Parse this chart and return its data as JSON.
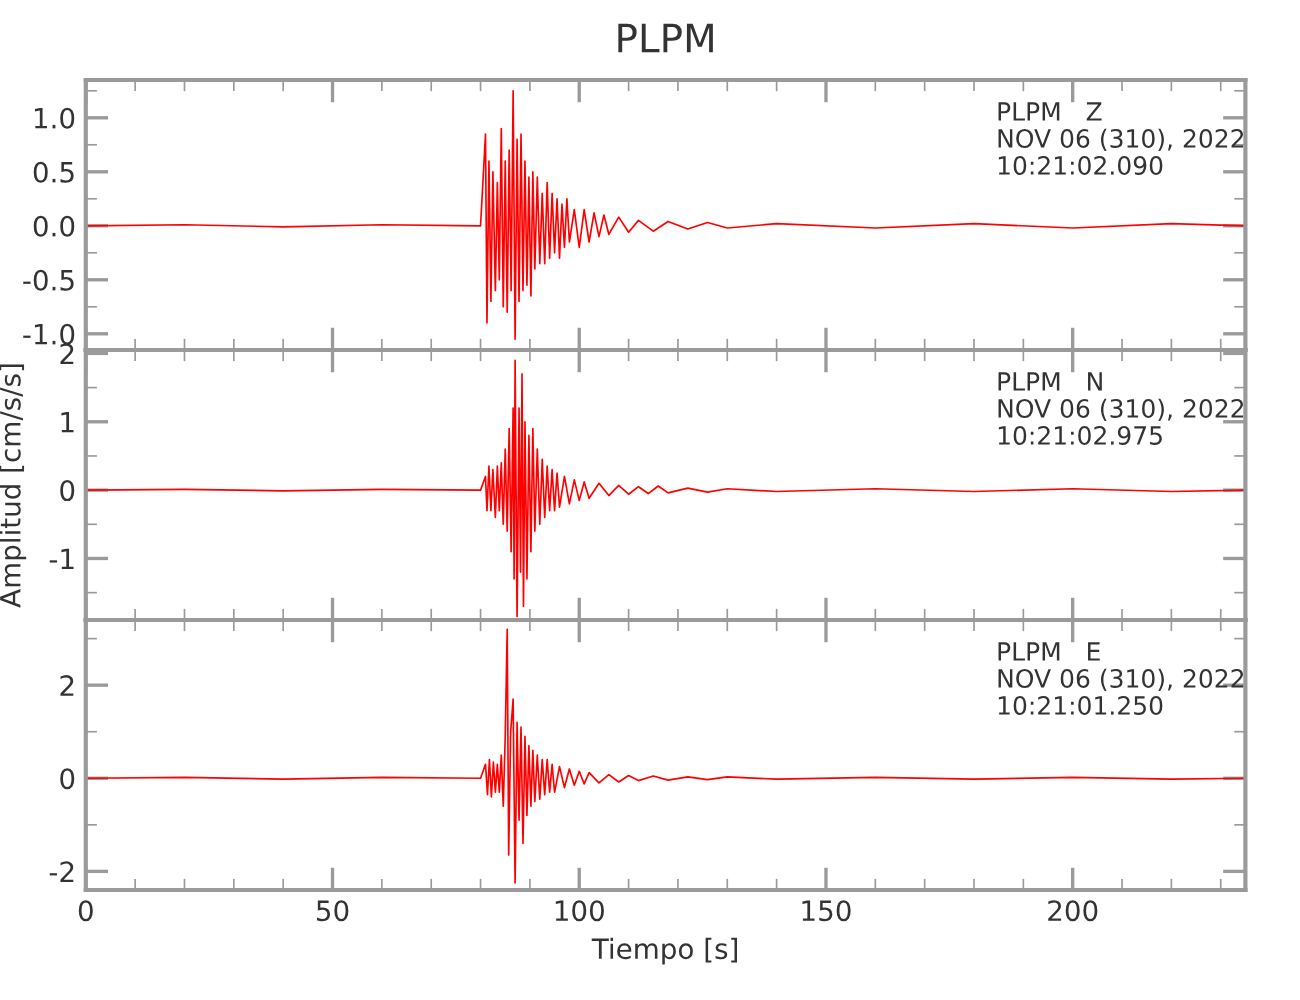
{
  "chart_data": [
    {
      "type": "line",
      "title": "PLPM",
      "annotations": [
        "PLPM   Z",
        "NOV 06 (310), 2022",
        "10:21:02.090"
      ],
      "xlim": [
        0,
        235
      ],
      "xticks": [
        0,
        50,
        100,
        150,
        200
      ],
      "ylim": [
        -1.15,
        1.35
      ],
      "yticks": [
        {
          "value": -1.0,
          "label": "-1.0"
        },
        {
          "value": -0.5,
          "label": "-0.5"
        },
        {
          "value": 0.0,
          "label": "0.0"
        },
        {
          "value": 0.5,
          "label": "0.5"
        },
        {
          "value": 1.0,
          "label": "1.0"
        }
      ],
      "tick_labels": "y",
      "grid": false,
      "legend": false,
      "line_style": "solid",
      "marker": "none",
      "series": [
        {
          "color": "#ff0000",
          "x": [
            0,
            20,
            40,
            60,
            80,
            81,
            81.3,
            81.7,
            82.1,
            82.5,
            83,
            83.4,
            83.8,
            84.2,
            84.6,
            85,
            85.4,
            85.8,
            86.2,
            86.6,
            87,
            87.4,
            87.8,
            88.2,
            88.6,
            89,
            89.4,
            89.8,
            90.2,
            90.6,
            91,
            91.5,
            92,
            92.5,
            93,
            93.5,
            94,
            94.5,
            95,
            95.5,
            96,
            96.5,
            97,
            97.5,
            98,
            99,
            100,
            101,
            102,
            103,
            104,
            105,
            106,
            108,
            110,
            112,
            115,
            118,
            122,
            126,
            130,
            140,
            160,
            180,
            200,
            220,
            235
          ],
          "values": [
            0,
            0.01,
            -0.01,
            0.01,
            0,
            0.85,
            -0.9,
            0.6,
            -0.7,
            0.5,
            -0.6,
            0.4,
            -0.5,
            0.9,
            -0.75,
            0.6,
            -0.8,
            0.7,
            -0.6,
            1.25,
            -1.05,
            0.8,
            -0.7,
            0.85,
            -0.6,
            0.6,
            -0.55,
            0.45,
            -0.65,
            0.5,
            -0.4,
            0.45,
            -0.35,
            0.3,
            -0.35,
            0.4,
            -0.3,
            0.3,
            -0.25,
            0.25,
            -0.3,
            0.2,
            -0.2,
            0.25,
            -0.15,
            0.15,
            -0.2,
            0.15,
            -0.15,
            0.12,
            -0.1,
            0.1,
            -0.08,
            0.08,
            -0.06,
            0.05,
            -0.05,
            0.04,
            -0.03,
            0.03,
            -0.02,
            0.02,
            -0.02,
            0.02,
            -0.02,
            0.02,
            0
          ]
        }
      ]
    },
    {
      "type": "line",
      "ylabel": "Amplitud [cm/s/s]",
      "annotations": [
        "PLPM   N",
        "NOV 06 (310), 2022",
        "10:21:02.975"
      ],
      "xlim": [
        0,
        235
      ],
      "xticks": [
        0,
        50,
        100,
        150,
        200
      ],
      "ylim": [
        -1.9,
        2.05
      ],
      "yticks": [
        -1,
        0,
        1,
        2
      ],
      "tick_labels": "y",
      "grid": false,
      "legend": false,
      "line_style": "solid",
      "marker": "none",
      "series": [
        {
          "color": "#ff0000",
          "x": [
            0,
            20,
            40,
            60,
            80,
            81,
            81.3,
            81.7,
            82.1,
            82.5,
            83,
            83.4,
            83.8,
            84.2,
            84.6,
            85,
            85.4,
            85.8,
            86.2,
            86.6,
            86.8,
            87,
            87.4,
            87.8,
            88.1,
            88.4,
            88.7,
            89,
            89.4,
            89.8,
            90.2,
            90.6,
            91,
            91.5,
            92,
            92.5,
            93,
            93.5,
            94,
            94.5,
            95,
            95.5,
            96,
            97,
            98,
            99,
            100,
            101,
            102,
            104,
            106,
            108,
            110,
            112,
            114,
            116,
            118,
            122,
            126,
            130,
            140,
            160,
            180,
            200,
            220,
            235
          ],
          "values": [
            0,
            0.01,
            -0.01,
            0.01,
            0,
            0.2,
            -0.3,
            0.35,
            -0.3,
            0.3,
            -0.4,
            0.35,
            -0.3,
            0.4,
            -0.5,
            0.6,
            -0.6,
            0.9,
            -0.9,
            1.2,
            -1.3,
            1.9,
            -1.85,
            1.2,
            -1.2,
            1.7,
            -1.7,
            1.0,
            -1.3,
            0.8,
            -0.9,
            0.9,
            -0.6,
            0.6,
            -0.5,
            0.45,
            -0.4,
            0.35,
            -0.3,
            0.3,
            -0.3,
            0.25,
            -0.25,
            0.2,
            -0.2,
            0.15,
            -0.15,
            0.12,
            -0.12,
            0.1,
            -0.08,
            0.07,
            -0.06,
            0.05,
            -0.05,
            0.06,
            -0.04,
            0.03,
            -0.03,
            0.02,
            -0.02,
            0.02,
            -0.02,
            0.02,
            -0.02,
            0
          ]
        }
      ]
    },
    {
      "type": "line",
      "xlabel": "Tiempo [s]",
      "annotations": [
        "PLPM   E",
        "NOV 06 (310), 2022",
        "10:21:01.250"
      ],
      "xlim": [
        0,
        235
      ],
      "xticks": [
        0,
        50,
        100,
        150,
        200
      ],
      "ylim": [
        -2.4,
        3.4
      ],
      "yticks": [
        -2,
        0,
        2
      ],
      "grid": false,
      "legend": false,
      "line_style": "solid",
      "marker": "none",
      "series": [
        {
          "color": "#ff0000",
          "x": [
            0,
            20,
            40,
            60,
            80,
            81,
            81.4,
            81.8,
            82.2,
            82.6,
            83,
            83.4,
            83.8,
            84.2,
            84.6,
            85,
            85.4,
            85.7,
            86.1,
            86.6,
            87,
            87.4,
            87.8,
            88.2,
            88.6,
            89,
            89.4,
            89.8,
            90.2,
            90.6,
            91,
            91.5,
            92,
            92.5,
            93,
            93.5,
            94,
            94.5,
            95,
            96,
            97,
            98,
            99,
            100,
            101,
            102,
            104,
            106,
            108,
            110,
            112,
            115,
            118,
            122,
            126,
            130,
            140,
            160,
            180,
            200,
            220,
            235
          ],
          "values": [
            0,
            0.02,
            -0.02,
            0.02,
            0,
            0.3,
            -0.35,
            0.4,
            -0.4,
            0.35,
            -0.3,
            0.3,
            -0.3,
            0.5,
            -0.6,
            0.9,
            3.2,
            -1.65,
            1.0,
            1.7,
            -2.25,
            1.2,
            -0.9,
            1.1,
            -1.4,
            0.9,
            -0.8,
            0.7,
            -0.6,
            0.6,
            -0.5,
            0.5,
            -0.45,
            0.4,
            -0.35,
            0.4,
            -0.3,
            0.3,
            -0.3,
            0.25,
            -0.2,
            0.2,
            -0.15,
            0.15,
            -0.12,
            0.12,
            -0.1,
            0.08,
            -0.08,
            0.06,
            -0.05,
            0.05,
            -0.04,
            0.03,
            -0.03,
            0.03,
            -0.02,
            0.02,
            -0.02,
            0.02,
            -0.02,
            0
          ]
        }
      ]
    }
  ]
}
